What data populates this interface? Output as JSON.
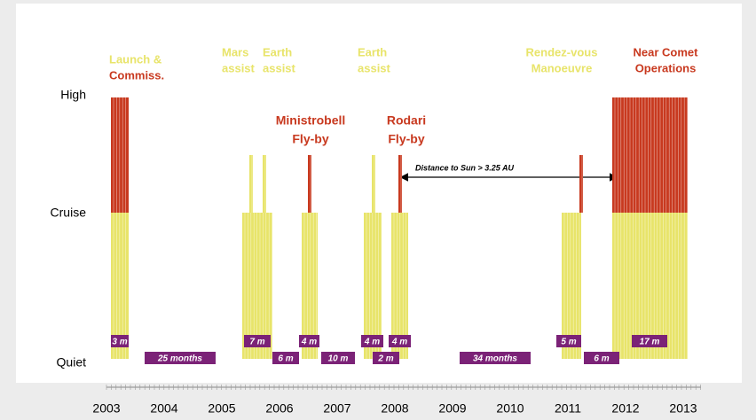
{
  "levels": [
    "High",
    "Cruise",
    "Quiet"
  ],
  "years": [
    "2003",
    "2004",
    "2005",
    "2006",
    "2007",
    "2008",
    "2009",
    "2010",
    "2011",
    "2012",
    "2013"
  ],
  "phases": [
    {
      "lines": [
        "Launch &",
        "Commiss."
      ]
    },
    {
      "lines": [
        "Mars",
        "assist"
      ]
    },
    {
      "lines": [
        "Earth",
        "assist"
      ]
    },
    {
      "lines": [
        "Earth",
        "assist"
      ]
    },
    {
      "lines": [
        "Rendez-vous",
        "Manoeuvre"
      ]
    },
    {
      "lines": [
        "Near Comet",
        "Operations"
      ]
    },
    {
      "lines": [
        "Ministrobell",
        "Fly-by"
      ]
    },
    {
      "lines": [
        "Rodari",
        "Fly-by"
      ]
    }
  ],
  "durations": [
    "3 m",
    "25 months",
    "7 m",
    "6 m",
    "4 m",
    "10 m",
    "4 m",
    "2 m",
    "4 m",
    "34 months",
    "5 m",
    "6 m",
    "17 m"
  ],
  "annotation": "Distance to Sun > 3.25 AU"
}
